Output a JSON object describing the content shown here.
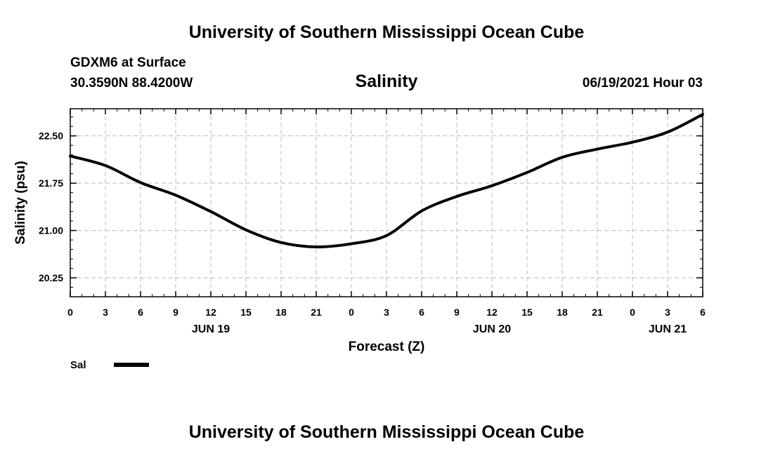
{
  "header": {
    "title": "University of Southern Mississippi Ocean Cube",
    "station": "GDXM6 at Surface",
    "location": "30.3590N  88.4200W",
    "variable": "Salinity",
    "datetime": "06/19/2021 Hour 03"
  },
  "footer": {
    "title": "University of Southern Mississippi Ocean Cube"
  },
  "legend": {
    "label": "Sal",
    "color": "#000000"
  },
  "chart_data": {
    "type": "line",
    "title": "Salinity",
    "xlabel": "Forecast (Z)",
    "ylabel": "Salinity (psu)",
    "xlim": [
      0,
      54
    ],
    "ylim": [
      19.95,
      22.93
    ],
    "grid": true,
    "x_ticks": [
      0,
      3,
      6,
      9,
      12,
      15,
      18,
      21,
      24,
      27,
      30,
      33,
      36,
      39,
      42,
      45,
      48,
      51,
      54
    ],
    "x_tick_labels": [
      "0",
      "3",
      "6",
      "9",
      "12",
      "15",
      "18",
      "21",
      "0",
      "3",
      "6",
      "9",
      "12",
      "15",
      "18",
      "21",
      "0",
      "3",
      "6"
    ],
    "y_ticks": [
      20.25,
      21.0,
      21.75,
      22.5
    ],
    "y_tick_labels": [
      "20.25",
      "21.00",
      "21.75",
      "22.50"
    ],
    "date_labels": [
      {
        "x": 12,
        "label": "JUN 19"
      },
      {
        "x": 36,
        "label": "JUN 20"
      },
      {
        "x": 51,
        "label": "JUN 21"
      }
    ],
    "series": [
      {
        "name": "Sal",
        "x": [
          0,
          3,
          6,
          9,
          12,
          15,
          18,
          21,
          24,
          27,
          30,
          33,
          36,
          39,
          42,
          45,
          48,
          51,
          54
        ],
        "values": [
          22.18,
          22.03,
          21.76,
          21.56,
          21.3,
          21.01,
          20.81,
          20.74,
          20.79,
          20.92,
          21.31,
          21.54,
          21.71,
          21.92,
          22.16,
          22.29,
          22.4,
          22.56,
          22.84
        ]
      }
    ]
  }
}
